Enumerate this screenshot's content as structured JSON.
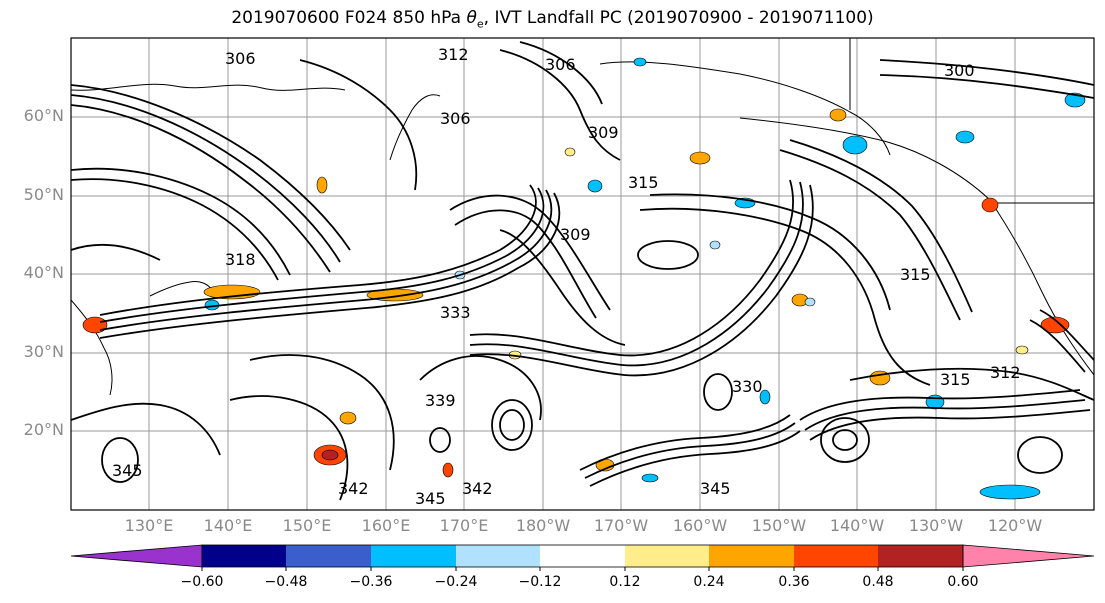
{
  "title": {
    "prefix": "2019070600 F024 850 hPa ",
    "theta": "θ",
    "theta_sub": "e",
    "suffix": ", IVT Landfall PC (2019070900 - 2019071100)"
  },
  "map": {
    "lat_labels": [
      "60°N",
      "50°N",
      "40°N",
      "30°N",
      "20°N"
    ],
    "lon_labels": [
      "130°E",
      "140°E",
      "150°E",
      "160°E",
      "170°E",
      "180°W",
      "170°W",
      "160°W",
      "150°W",
      "140°W",
      "130°W",
      "120°W"
    ],
    "contour_labels": [
      "306",
      "312",
      "306",
      "300",
      "306",
      "309",
      "315",
      "315",
      "318",
      "309",
      "333",
      "330",
      "315",
      "312",
      "342",
      "345",
      "345",
      "345",
      "342",
      "339"
    ],
    "contour_color": "#000000",
    "grid_color": "#9a9a9a"
  },
  "colorbar": {
    "colors": [
      "#9a32cd",
      "#00008b",
      "#3a5fcd",
      "#00bfff",
      "#b0e2ff",
      "#ffffff",
      "#ffec8b",
      "#ffa500",
      "#ff4500",
      "#b22222",
      "#ff82ab"
    ],
    "tick_labels": [
      "−0.60",
      "−0.48",
      "−0.36",
      "−0.24",
      "−0.12",
      "0.12",
      "0.24",
      "0.36",
      "0.48",
      "0.60"
    ]
  }
}
